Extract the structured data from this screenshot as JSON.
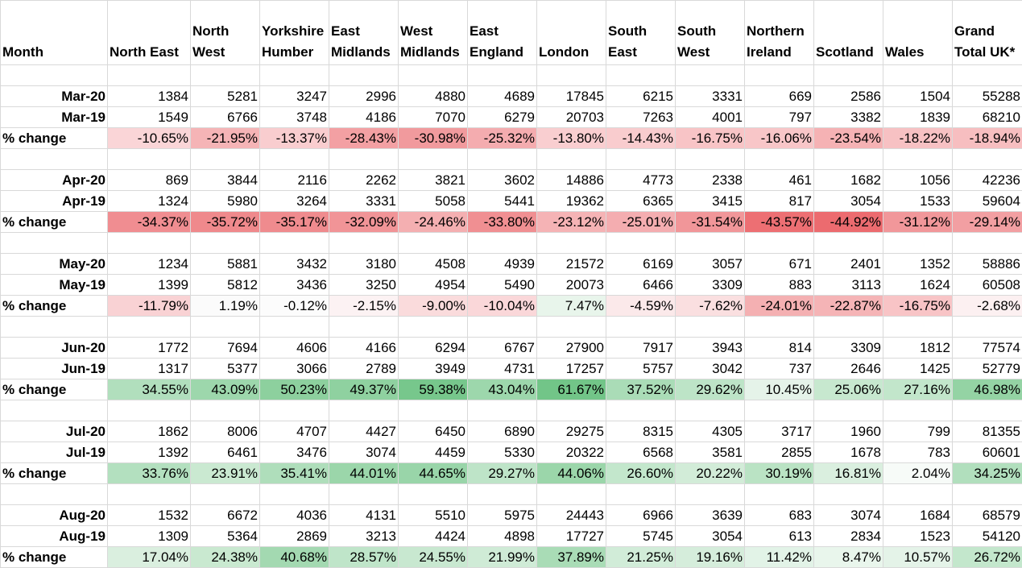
{
  "headers": [
    "Month",
    "North East",
    "North West",
    "Yorkshire Humber",
    "East Midlands",
    "West Midlands",
    "East England",
    "London",
    "South East",
    "South West",
    "Northern Ireland",
    "Scotland",
    "Wales",
    "Grand Total UK*"
  ],
  "groups": [
    {
      "cur_label": "Mar-20",
      "prev_label": "Mar-19",
      "change_label": "% change",
      "cur": [
        "1384",
        "5281",
        "3247",
        "2996",
        "4880",
        "4689",
        "17845",
        "6215",
        "3331",
        "669",
        "2586",
        "1504",
        "55288"
      ],
      "prev": [
        "1549",
        "6766",
        "3748",
        "4186",
        "7070",
        "6279",
        "20703",
        "7263",
        "4001",
        "797",
        "3382",
        "1839",
        "68210"
      ],
      "change": [
        "-10.65%",
        "-21.95%",
        "-13.37%",
        "-28.43%",
        "-30.98%",
        "-25.32%",
        "-13.80%",
        "-14.43%",
        "-16.75%",
        "-16.06%",
        "-23.54%",
        "-18.22%",
        "-18.94%"
      ],
      "change_colors": [
        "#fad5d7",
        "#f5b4b6",
        "#f9cdcf",
        "#f3a0a3",
        "#f19a9d",
        "#f4acaf",
        "#f9ced0",
        "#f9ccce",
        "#f8c4c6",
        "#f8c6c8",
        "#f5b2b4",
        "#f7c1c3",
        "#f7bec0"
      ]
    },
    {
      "cur_label": "Apr-20",
      "prev_label": "Apr-19",
      "change_label": "% change",
      "cur": [
        "869",
        "3844",
        "2116",
        "2262",
        "3821",
        "3602",
        "14886",
        "4773",
        "2338",
        "461",
        "1682",
        "1056",
        "42236"
      ],
      "prev": [
        "1324",
        "5980",
        "3264",
        "3331",
        "5058",
        "5441",
        "19362",
        "6365",
        "3415",
        "817",
        "3054",
        "1533",
        "59604"
      ],
      "change": [
        "-34.37%",
        "-35.72%",
        "-35.17%",
        "-32.09%",
        "-24.46%",
        "-33.80%",
        "-23.12%",
        "-25.01%",
        "-31.54%",
        "-43.57%",
        "-44.92%",
        "-31.12%",
        "-29.14%"
      ],
      "change_colors": [
        "#f08d91",
        "#ef898c",
        "#ef8b8e",
        "#f19497",
        "#f4afb1",
        "#f08f92",
        "#f5b3b5",
        "#f4adb0",
        "#f19699",
        "#ed6f73",
        "#ec6b6f",
        "#f1979a",
        "#f29fa2"
      ]
    },
    {
      "cur_label": "May-20",
      "prev_label": "May-19",
      "change_label": "% change",
      "cur": [
        "1234",
        "5881",
        "3432",
        "3180",
        "4508",
        "4939",
        "21572",
        "6169",
        "3057",
        "671",
        "2401",
        "1352",
        "58886"
      ],
      "prev": [
        "1399",
        "5812",
        "3436",
        "3250",
        "4954",
        "5490",
        "20073",
        "6466",
        "3309",
        "883",
        "3113",
        "1624",
        "60508"
      ],
      "change": [
        "-11.79%",
        "1.19%",
        "-0.12%",
        "-2.15%",
        "-9.00%",
        "-10.04%",
        "7.47%",
        "-4.59%",
        "-7.62%",
        "-24.01%",
        "-22.87%",
        "-16.75%",
        "-2.68%"
      ],
      "change_colors": [
        "#f9d2d4",
        "#fbfbfb",
        "#fcfcfc",
        "#fcf2f3",
        "#fadbdc",
        "#fad7d9",
        "#e8f5eb",
        "#fbe9ea",
        "#fadfe0",
        "#f4b0b2",
        "#f5b4b6",
        "#f8c4c6",
        "#fcf0f1"
      ]
    },
    {
      "cur_label": "Jun-20",
      "prev_label": "Jun-19",
      "change_label": "% change",
      "cur": [
        "1772",
        "7694",
        "4606",
        "4166",
        "6294",
        "6767",
        "27900",
        "7917",
        "3943",
        "814",
        "3309",
        "1812",
        "77574"
      ],
      "prev": [
        "1317",
        "5377",
        "3066",
        "2789",
        "3949",
        "4731",
        "17257",
        "5757",
        "3042",
        "737",
        "2646",
        "1425",
        "52779"
      ],
      "change": [
        "34.55%",
        "43.09%",
        "50.23%",
        "49.37%",
        "59.38%",
        "43.04%",
        "61.67%",
        "37.52%",
        "29.62%",
        "10.45%",
        "25.06%",
        "27.16%",
        "46.98%"
      ],
      "change_colors": [
        "#b1dfbd",
        "#9dd7ac",
        "#8dd09e",
        "#8fd1a0",
        "#77c78c",
        "#9dd7ac",
        "#72c588",
        "#aadcb7",
        "#bde4c7",
        "#e5f3e9",
        "#c7e8cf",
        "#c2e6cb",
        "#94d3a4"
      ]
    },
    {
      "cur_label": "Jul-20",
      "prev_label": "Jul-19",
      "change_label": "% change",
      "cur": [
        "1862",
        "8006",
        "4707",
        "4427",
        "6450",
        "6890",
        "29275",
        "8315",
        "4305",
        "3717",
        "1960",
        "799",
        "81355"
      ],
      "prev": [
        "1392",
        "6461",
        "3476",
        "3074",
        "4459",
        "5330",
        "20322",
        "6568",
        "3581",
        "2855",
        "1678",
        "783",
        "60601"
      ],
      "change": [
        "33.76%",
        "23.91%",
        "35.41%",
        "44.01%",
        "44.65%",
        "29.27%",
        "44.06%",
        "26.60%",
        "20.22%",
        "30.19%",
        "16.81%",
        "2.04%",
        "34.25%"
      ],
      "change_colors": [
        "#b3e0bf",
        "#cae9d1",
        "#afdebb",
        "#9bd6aa",
        "#99d5a9",
        "#bee4c8",
        "#9bd6aa",
        "#c3e7cc",
        "#d2ecd8",
        "#bae3c4",
        "#daefdf",
        "#f7fbf8",
        "#b1dfbd"
      ]
    },
    {
      "cur_label": "Aug-20",
      "prev_label": "Aug-19",
      "change_label": "% change",
      "cur": [
        "1532",
        "6672",
        "4036",
        "4131",
        "5510",
        "5975",
        "24443",
        "6966",
        "3639",
        "683",
        "3074",
        "1684",
        "68579"
      ],
      "prev": [
        "1309",
        "5364",
        "2869",
        "3213",
        "4424",
        "4898",
        "17727",
        "5745",
        "3054",
        "613",
        "2834",
        "1523",
        "54120"
      ],
      "change": [
        "17.04%",
        "24.38%",
        "40.68%",
        "28.57%",
        "24.55%",
        "21.99%",
        "37.89%",
        "21.25%",
        "19.16%",
        "11.42%",
        "8.47%",
        "10.57%",
        "26.72%"
      ],
      "change_colors": [
        "#daefdf",
        "#c9e9d0",
        "#a3d9b1",
        "#bfe5c9",
        "#c8e8d0",
        "#cfebd6",
        "#a9dcb6",
        "#d1ecd8",
        "#d5eddb",
        "#e2f3e7",
        "#e9f6ec",
        "#e4f3e8",
        "#c3e7cc"
      ]
    }
  ]
}
